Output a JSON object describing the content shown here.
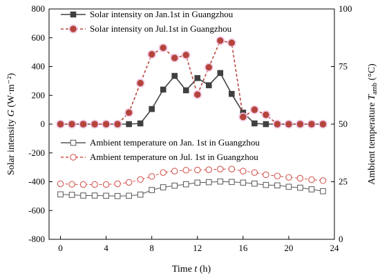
{
  "chart_data": {
    "type": "line",
    "xlabel": "Time t (h)",
    "ylabel_left": "Solar intensity G (W·m⁻²)",
    "ylabel_right": "Ambient temperature T_amb (°C)",
    "xlim": [
      -1,
      24
    ],
    "ylim_left": [
      -800,
      800
    ],
    "ylim_right": [
      0,
      100
    ],
    "xticks": [
      0,
      4,
      8,
      12,
      16,
      20,
      24
    ],
    "yticks_left": [
      -800,
      -600,
      -400,
      -200,
      0,
      200,
      400,
      600,
      800
    ],
    "yticks_right": [
      0,
      25,
      50,
      75,
      100
    ],
    "grid": false,
    "x": [
      0,
      1,
      2,
      3,
      4,
      5,
      6,
      7,
      8,
      9,
      10,
      11,
      12,
      13,
      14,
      15,
      16,
      17,
      18,
      19,
      20,
      21,
      22,
      23
    ],
    "series": [
      {
        "name": "Solar intensity on Jan.1st in Guangzhou",
        "axis": "left",
        "color": "#404040",
        "marker": "square-filled",
        "values": [
          0,
          0,
          0,
          0,
          0,
          0,
          0,
          5,
          105,
          240,
          335,
          235,
          320,
          270,
          355,
          210,
          80,
          5,
          0,
          0,
          0,
          0,
          0,
          0
        ]
      },
      {
        "name": "Solar intensity on Jul.1st in Guangzhou",
        "axis": "left",
        "color": "#b5453c",
        "marker": "circle-filled",
        "values": [
          0,
          0,
          0,
          0,
          0,
          0,
          80,
          285,
          485,
          530,
          460,
          480,
          205,
          395,
          580,
          565,
          50,
          100,
          65,
          0,
          0,
          0,
          0,
          0
        ]
      },
      {
        "name": "Ambient temperature on Jan. 1st in Guangzhou",
        "axis": "right",
        "color": "#555555",
        "marker": "square-open",
        "values": [
          19.5,
          19.3,
          19.0,
          19.0,
          18.9,
          18.8,
          18.9,
          19.4,
          21.4,
          22.6,
          23.3,
          23.9,
          24.6,
          24.8,
          25.1,
          24.9,
          24.6,
          24.2,
          23.6,
          23.4,
          22.8,
          22.4,
          21.7,
          20.9
        ]
      },
      {
        "name": "Ambient temperature on Jul. 1st in Guangzhou",
        "axis": "right",
        "color": "#d04a42",
        "marker": "circle-open",
        "values": [
          24.1,
          23.9,
          23.8,
          23.8,
          23.8,
          24.1,
          24.7,
          26.0,
          27.3,
          29.0,
          29.6,
          30.0,
          30.1,
          30.2,
          30.5,
          30.5,
          29.6,
          29.0,
          28.0,
          27.5,
          26.9,
          26.5,
          25.9,
          25.5
        ]
      }
    ]
  }
}
